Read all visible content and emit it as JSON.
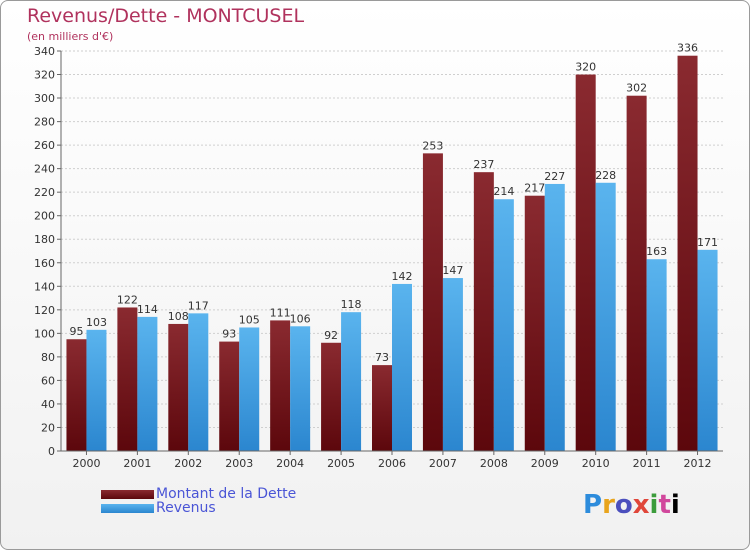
{
  "header": {
    "title": "Revenus/Dette - MONTCUSEL",
    "subtitle": "(en milliers d'€)"
  },
  "legend": {
    "items": [
      {
        "label": "Montant de la Dette",
        "color": "#6b0f14"
      },
      {
        "label": "Revenus",
        "color": "#3a9ae0"
      }
    ]
  },
  "logo": {
    "text": "Proxiti"
  },
  "colors": {
    "title": "#b0325d",
    "debt_bar": "#7a1a20",
    "revenue_bar": "#3fa0e4",
    "axis": "#666666",
    "grid": "#cccccc"
  },
  "chart_data": {
    "type": "bar",
    "title": "Revenus/Dette - MONTCUSEL",
    "subtitle": "(en milliers d'€)",
    "categories": [
      "2000",
      "2001",
      "2002",
      "2003",
      "2004",
      "2005",
      "2006",
      "2007",
      "2008",
      "2009",
      "2010",
      "2011",
      "2012"
    ],
    "series": [
      {
        "name": "Montant de la Dette",
        "values": [
          95,
          122,
          108,
          93,
          111,
          92,
          73,
          253,
          237,
          217,
          320,
          302,
          336
        ]
      },
      {
        "name": "Revenus",
        "values": [
          103,
          114,
          117,
          105,
          106,
          118,
          142,
          147,
          214,
          227,
          228,
          163,
          171
        ]
      }
    ],
    "ylim": [
      0,
      340
    ],
    "ytick_step": 20,
    "grid": true,
    "data_labels": true,
    "legend_position": "bottom-left"
  }
}
